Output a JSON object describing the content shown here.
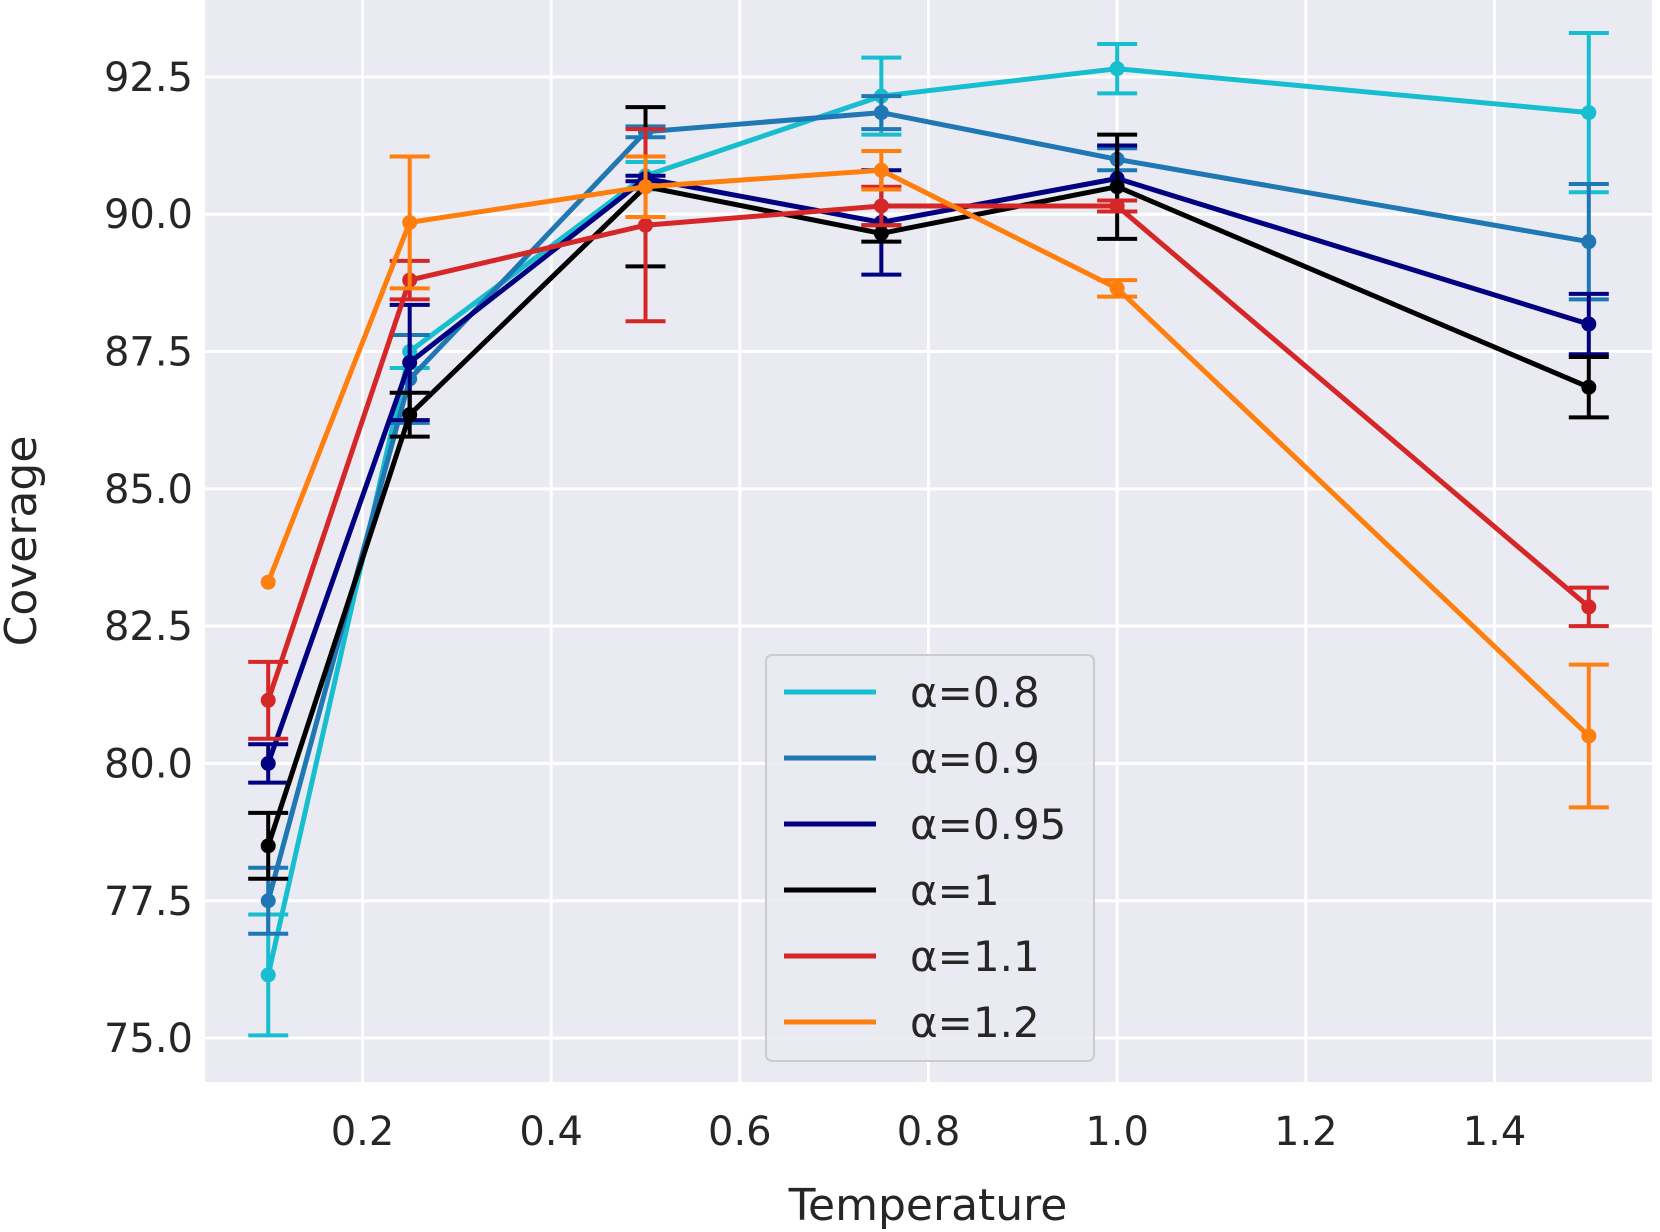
{
  "chart_data": {
    "type": "line",
    "title": "",
    "xlabel": "Temperature",
    "ylabel": "Coverage",
    "xlim": [
      0.033,
      1.567
    ],
    "ylim": [
      74.2,
      93.9
    ],
    "xticks": [
      0.2,
      0.4,
      0.6,
      0.8,
      1.0,
      1.2,
      1.4
    ],
    "xtick_labels": [
      "0.2",
      "0.4",
      "0.6",
      "0.8",
      "1.0",
      "1.2",
      "1.4"
    ],
    "yticks": [
      75.0,
      77.5,
      80.0,
      82.5,
      85.0,
      87.5,
      90.0,
      92.5
    ],
    "ytick_labels": [
      "75.0",
      "77.5",
      "80.0",
      "82.5",
      "85.0",
      "87.5",
      "90.0",
      "92.5"
    ],
    "grid": true,
    "legend_position": "lower-center",
    "x": [
      0.1,
      0.25,
      0.5,
      0.75,
      1.0,
      1.5
    ],
    "series": [
      {
        "name": "α=0.8",
        "color": "#17becf",
        "values": [
          76.15,
          87.5,
          90.7,
          92.15,
          92.65,
          91.85
        ],
        "err": [
          1.1,
          0.3,
          0.25,
          0.7,
          0.45,
          1.45
        ]
      },
      {
        "name": "α=0.9",
        "color": "#1f77b4",
        "values": [
          77.5,
          87.0,
          91.5,
          91.85,
          91.0,
          89.5
        ],
        "err": [
          0.6,
          0.8,
          0.1,
          0.3,
          0.2,
          1.05
        ]
      },
      {
        "name": "α=0.95",
        "color": "#000080",
        "values": [
          80.0,
          87.3,
          90.65,
          89.85,
          90.65,
          88.0
        ],
        "err": [
          0.35,
          1.05,
          0.05,
          0.95,
          0.6,
          0.55
        ]
      },
      {
        "name": "α=1",
        "color": "#000000",
        "values": [
          78.5,
          86.35,
          90.5,
          89.65,
          90.5,
          86.85
        ],
        "err": [
          0.6,
          0.4,
          1.45,
          0.15,
          0.95,
          0.55
        ]
      },
      {
        "name": "α=1.1",
        "color": "#d62728",
        "values": [
          81.15,
          88.8,
          89.8,
          90.15,
          90.15,
          82.85
        ],
        "err": [
          0.7,
          0.35,
          1.75,
          0.35,
          0.1,
          0.35
        ]
      },
      {
        "name": "α=1.2",
        "color": "#ff7f0e",
        "values": [
          83.3,
          89.85,
          90.5,
          90.8,
          88.65,
          80.5
        ],
        "err": [
          0.0,
          1.2,
          0.55,
          0.35,
          0.15,
          1.3
        ]
      }
    ]
  },
  "colors": {
    "plot_background": "#eaeaf2",
    "grid": "#ffffff",
    "text": "#262626"
  }
}
